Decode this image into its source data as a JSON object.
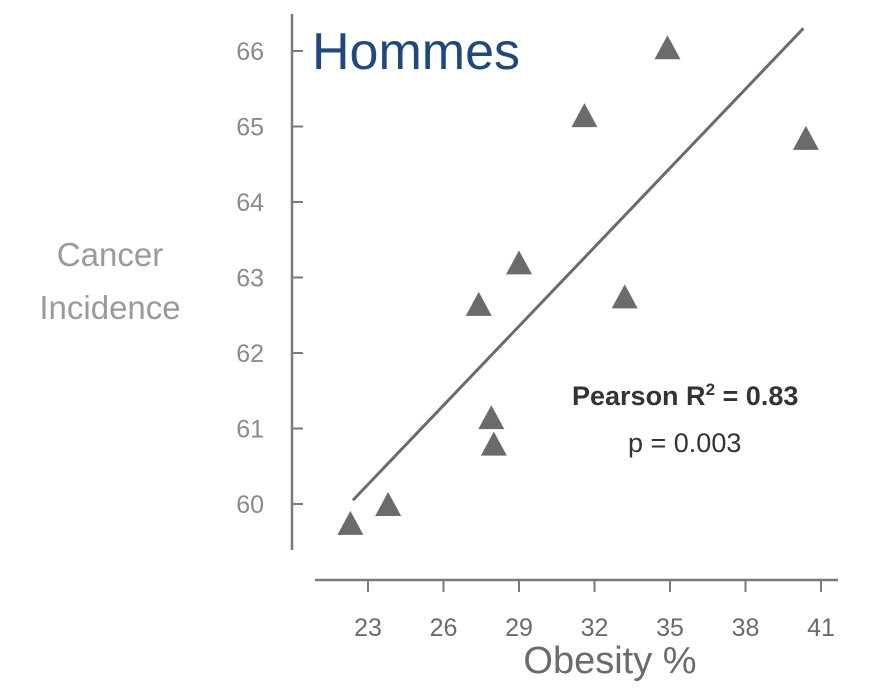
{
  "chart_data": {
    "type": "scatter",
    "title": "Hommes",
    "xlabel": "Obesity %",
    "ylabel": [
      "Cancer",
      "Incidence"
    ],
    "x_ticks": [
      23,
      26,
      29,
      32,
      35,
      38,
      41
    ],
    "y_ticks": [
      60,
      61,
      62,
      63,
      64,
      65,
      66
    ],
    "xlim": [
      21.0,
      42.0
    ],
    "ylim": [
      59.3,
      66.7
    ],
    "marker": "triangle",
    "marker_color": "#6b6b6b",
    "line_color": "#6b6b6b",
    "points": [
      {
        "x": 22.3,
        "y": 59.75
      },
      {
        "x": 23.8,
        "y": 60.0
      },
      {
        "x": 27.4,
        "y": 62.65
      },
      {
        "x": 27.9,
        "y": 61.15
      },
      {
        "x": 28.0,
        "y": 60.8
      },
      {
        "x": 29.0,
        "y": 63.2
      },
      {
        "x": 31.6,
        "y": 65.15
      },
      {
        "x": 33.2,
        "y": 62.75
      },
      {
        "x": 34.9,
        "y": 66.05
      },
      {
        "x": 40.4,
        "y": 64.85
      }
    ],
    "trendline": {
      "x": [
        22.4,
        40.3
      ],
      "y": [
        60.05,
        66.3
      ]
    },
    "stat_label_prefix": "Pearson R",
    "stat_label_sup": "2",
    "stat_label_suffix": " = 0.83",
    "p_value_label": "p = 0.003",
    "grid": false,
    "legend": "none"
  }
}
